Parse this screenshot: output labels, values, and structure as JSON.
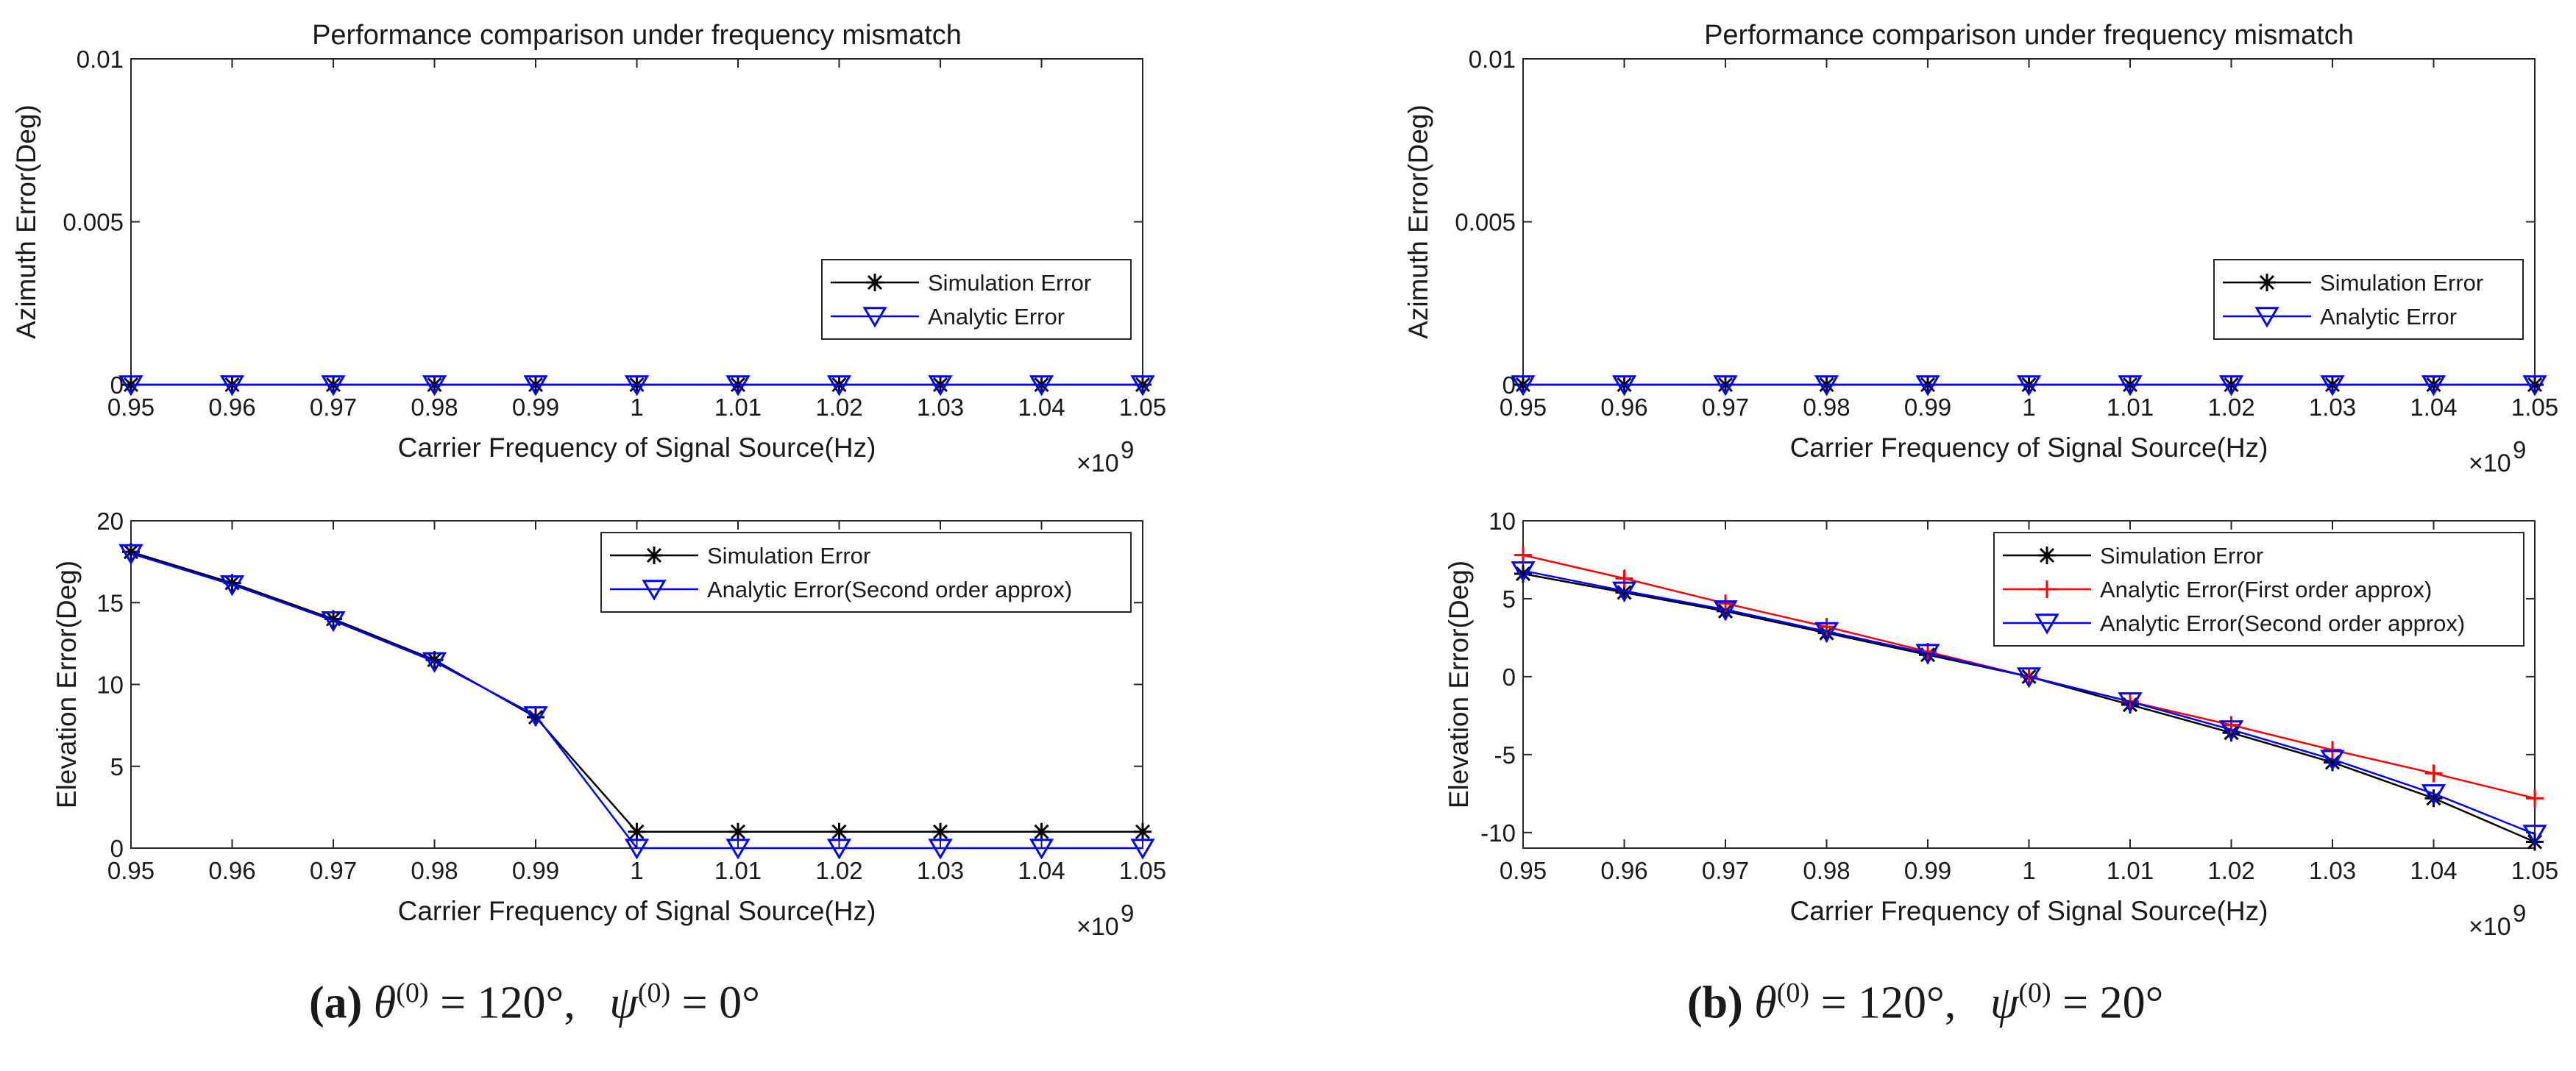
{
  "chart_data": [
    {
      "type": "line",
      "panel": "a",
      "position": "top-left",
      "title": "Performance comparison under frequency mismatch",
      "xlabel": "Carrier Frequency of Signal Source(Hz)",
      "ylabel": "Azimuth Error(Deg)",
      "x_multiplier_label": "×10",
      "x_multiplier_exp": "9",
      "xlim": [
        0.95,
        1.05
      ],
      "ylim": [
        0,
        0.01
      ],
      "x": [
        0.95,
        0.96,
        0.97,
        0.98,
        0.99,
        1.0,
        1.01,
        1.02,
        1.03,
        1.04,
        1.05
      ],
      "xticks": [
        "0.95",
        "0.96",
        "0.97",
        "0.98",
        "0.99",
        "1",
        "1.01",
        "1.02",
        "1.03",
        "1.04",
        "1.05"
      ],
      "yticks": [
        "0",
        "0.005",
        "0.01"
      ],
      "ytick_values": [
        0,
        0.005,
        0.01
      ],
      "grid": false,
      "legend_placement": "lower-right",
      "series": [
        {
          "name": "Simulation Error",
          "color": "#000000",
          "marker": "asterisk",
          "values": [
            0,
            0,
            0,
            0,
            0,
            0,
            0,
            0,
            0,
            0,
            0
          ]
        },
        {
          "name": "Analytic Error",
          "color": "#0000ff",
          "marker": "triangle-down",
          "values": [
            0,
            0,
            0,
            0,
            0,
            0,
            0,
            0,
            0,
            0,
            0
          ]
        }
      ]
    },
    {
      "type": "line",
      "panel": "a",
      "position": "bottom-left",
      "title": "",
      "xlabel": "Carrier Frequency of Signal Source(Hz)",
      "ylabel": "Elevation Error(Deg)",
      "x_multiplier_label": "×10",
      "x_multiplier_exp": "9",
      "xlim": [
        0.95,
        1.05
      ],
      "ylim": [
        0,
        20
      ],
      "x": [
        0.95,
        0.96,
        0.97,
        0.98,
        0.99,
        1.0,
        1.01,
        1.02,
        1.03,
        1.04,
        1.05
      ],
      "xticks": [
        "0.95",
        "0.96",
        "0.97",
        "0.98",
        "0.99",
        "1",
        "1.01",
        "1.02",
        "1.03",
        "1.04",
        "1.05"
      ],
      "yticks": [
        "0",
        "5",
        "10",
        "15",
        "20"
      ],
      "ytick_values": [
        0,
        5,
        10,
        15,
        20
      ],
      "grid": false,
      "legend_placement": "top-right",
      "series": [
        {
          "name": "Simulation Error",
          "color": "#000000",
          "marker": "asterisk",
          "values": [
            18.1,
            16.2,
            14.0,
            11.5,
            8.0,
            1.0,
            1.0,
            1.0,
            1.0,
            1.0,
            1.0
          ]
        },
        {
          "name": "Analytic Error(Second order approx)",
          "color": "#0000ff",
          "marker": "triangle-down",
          "values": [
            18.0,
            16.1,
            13.9,
            11.4,
            8.1,
            0,
            0,
            0,
            0,
            0,
            0
          ]
        }
      ]
    },
    {
      "type": "line",
      "panel": "b",
      "position": "top-right",
      "title": "Performance comparison under frequency mismatch",
      "xlabel": "Carrier Frequency of Signal Source(Hz)",
      "ylabel": "Azimuth Error(Deg)",
      "x_multiplier_label": "×10",
      "x_multiplier_exp": "9",
      "xlim": [
        0.95,
        1.05
      ],
      "ylim": [
        0,
        0.01
      ],
      "x": [
        0.95,
        0.96,
        0.97,
        0.98,
        0.99,
        1.0,
        1.01,
        1.02,
        1.03,
        1.04,
        1.05
      ],
      "xticks": [
        "0.95",
        "0.96",
        "0.97",
        "0.98",
        "0.99",
        "1",
        "1.01",
        "1.02",
        "1.03",
        "1.04",
        "1.05"
      ],
      "yticks": [
        "0",
        "0.005",
        "0.01"
      ],
      "ytick_values": [
        0,
        0.005,
        0.01
      ],
      "grid": false,
      "legend_placement": "lower-right",
      "series": [
        {
          "name": "Simulation Error",
          "color": "#000000",
          "marker": "asterisk",
          "values": [
            0,
            0,
            0,
            0,
            0,
            0,
            0,
            0,
            0,
            0,
            0
          ]
        },
        {
          "name": "Analytic Error",
          "color": "#0000ff",
          "marker": "triangle-down",
          "values": [
            0,
            0,
            0,
            0,
            0,
            0,
            0,
            0,
            0,
            0,
            0
          ]
        }
      ]
    },
    {
      "type": "line",
      "panel": "b",
      "position": "bottom-right",
      "title": "",
      "xlabel": "Carrier Frequency of Signal Source(Hz)",
      "ylabel": "Elevation Error(Deg)",
      "x_multiplier_label": "×10",
      "x_multiplier_exp": "9",
      "xlim": [
        0.95,
        1.05
      ],
      "ylim": [
        -11,
        10
      ],
      "x": [
        0.95,
        0.96,
        0.97,
        0.98,
        0.99,
        1.0,
        1.01,
        1.02,
        1.03,
        1.04,
        1.05
      ],
      "xticks": [
        "0.95",
        "0.96",
        "0.97",
        "0.98",
        "0.99",
        "1",
        "1.01",
        "1.02",
        "1.03",
        "1.04",
        "1.05"
      ],
      "yticks": [
        "-10",
        "-5",
        "0",
        "5",
        "10"
      ],
      "ytick_values": [
        -10,
        -5,
        0,
        5,
        10
      ],
      "grid": false,
      "legend_placement": "top-left",
      "series": [
        {
          "name": "Simulation Error",
          "color": "#000000",
          "marker": "asterisk",
          "values": [
            6.6,
            5.4,
            4.2,
            2.8,
            1.4,
            0,
            -1.8,
            -3.6,
            -5.5,
            -7.8,
            -10.6
          ]
        },
        {
          "name": "Analytic Error(First order approx)",
          "color": "#ff0000",
          "marker": "plus",
          "values": [
            7.8,
            6.3,
            4.7,
            3.2,
            1.6,
            0,
            -1.6,
            -3.1,
            -4.7,
            -6.2,
            -7.8
          ]
        },
        {
          "name": "Analytic Error(Second order approx)",
          "color": "#0000ff",
          "marker": "triangle-down",
          "values": [
            6.8,
            5.5,
            4.3,
            2.9,
            1.5,
            0,
            -1.6,
            -3.4,
            -5.3,
            -7.5,
            -10.1
          ]
        }
      ]
    }
  ],
  "captions": {
    "a": {
      "label": "(a)",
      "theta": "θ",
      "psi": "ψ",
      "sup": "(0)",
      "theta_value": " = 120°,",
      "psi_value": " = 0°"
    },
    "b": {
      "label": "(b)",
      "theta": "θ",
      "psi": "ψ",
      "sup": "(0)",
      "theta_value": " = 120°,",
      "psi_value": " = 20°"
    }
  }
}
